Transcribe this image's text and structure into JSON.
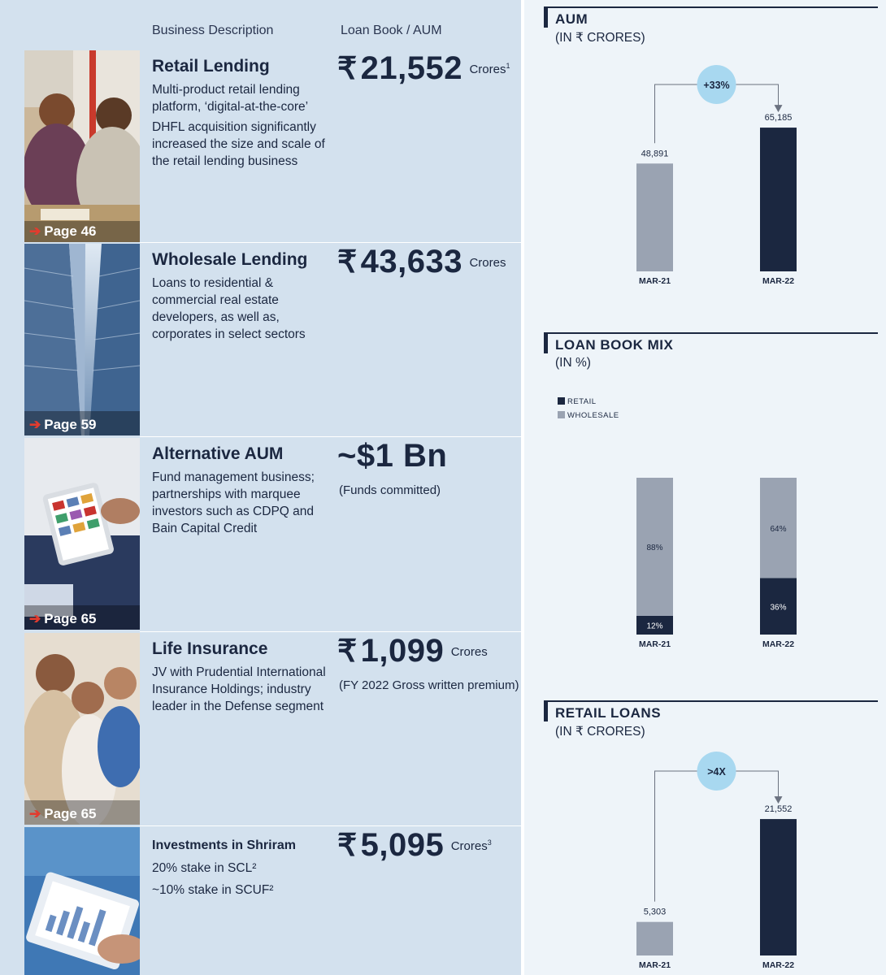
{
  "header": {
    "col_business": "Business Description",
    "col_loanbook": "Loan Book / AUM"
  },
  "segments": [
    {
      "title": "Retail Lending",
      "desc": [
        "Multi-product retail lending platform, ‘digital-at-the-core’",
        "DHFL acquisition significantly increased the size and scale of the retail lending business"
      ],
      "currency": "₹",
      "amount": "21,552",
      "unit": "Crores",
      "unit_note": "1",
      "subnote": "",
      "page": "Page 46"
    },
    {
      "title": "Wholesale Lending",
      "desc": [
        "Loans to residential & commercial real estate developers, as well as, corporates in select sectors"
      ],
      "currency": "₹",
      "amount": "43,633",
      "unit": "Crores",
      "unit_note": "",
      "subnote": "",
      "page": "Page 59"
    },
    {
      "title": "Alternative AUM",
      "desc": [
        "Fund management business; partnerships with marquee investors such as CDPQ and Bain Capital Credit"
      ],
      "currency": "",
      "amount": "~$1 Bn",
      "unit": "",
      "unit_note": "",
      "subnote": "(Funds committed)",
      "page": "Page 65"
    },
    {
      "title": "Life Insurance",
      "desc": [
        "JV with Prudential International Insurance Holdings; industry leader in the Defense segment"
      ],
      "currency": "₹",
      "amount": "1,099",
      "unit": "Crores",
      "unit_note": "",
      "subnote": "(FY 2022 Gross written premium)",
      "page": "Page 65"
    },
    {
      "title": "Investments in Shriram",
      "desc": [
        "20% stake in SCL²",
        "~10% stake in SCUF²"
      ],
      "currency": "₹",
      "amount": "5,095",
      "unit": "Crores",
      "unit_note": "3",
      "subnote": "",
      "page": ""
    }
  ],
  "colors": {
    "navy": "#1b2740",
    "grey": "#9aa3b2",
    "bubble": "#a8d8f0",
    "left_bg": "#d3e1ee",
    "right_bg": "#eef4f9",
    "arrow_red": "#e23b2e"
  },
  "chart_data": [
    {
      "type": "bar",
      "title": "AUM",
      "subtitle": "(IN ₹ CRORES)",
      "categories": [
        "MAR-21",
        "MAR-22"
      ],
      "values": [
        48891,
        65185
      ],
      "value_labels": [
        "48,891",
        "65,185"
      ],
      "ylim": [
        0,
        70000
      ],
      "growth_label": "+33%"
    },
    {
      "type": "bar",
      "stacked": true,
      "title": "LOAN BOOK MIX",
      "subtitle": "(IN %)",
      "categories": [
        "MAR-21",
        "MAR-22"
      ],
      "series": [
        {
          "name": "RETAIL",
          "values": [
            12,
            36
          ],
          "labels": [
            "12%",
            "36%"
          ]
        },
        {
          "name": "WHOLESALE",
          "values": [
            88,
            64
          ],
          "labels": [
            "88%",
            "64%"
          ]
        }
      ],
      "ylim": [
        0,
        100
      ],
      "legend": "top-left"
    },
    {
      "type": "bar",
      "title": "RETAIL LOANS",
      "subtitle": "(IN ₹ CRORES)",
      "categories": [
        "MAR-21",
        "MAR-22"
      ],
      "values": [
        5303,
        21552
      ],
      "value_labels": [
        "5,303",
        "21,552"
      ],
      "ylim": [
        0,
        24000
      ],
      "growth_label": ">4X"
    }
  ]
}
